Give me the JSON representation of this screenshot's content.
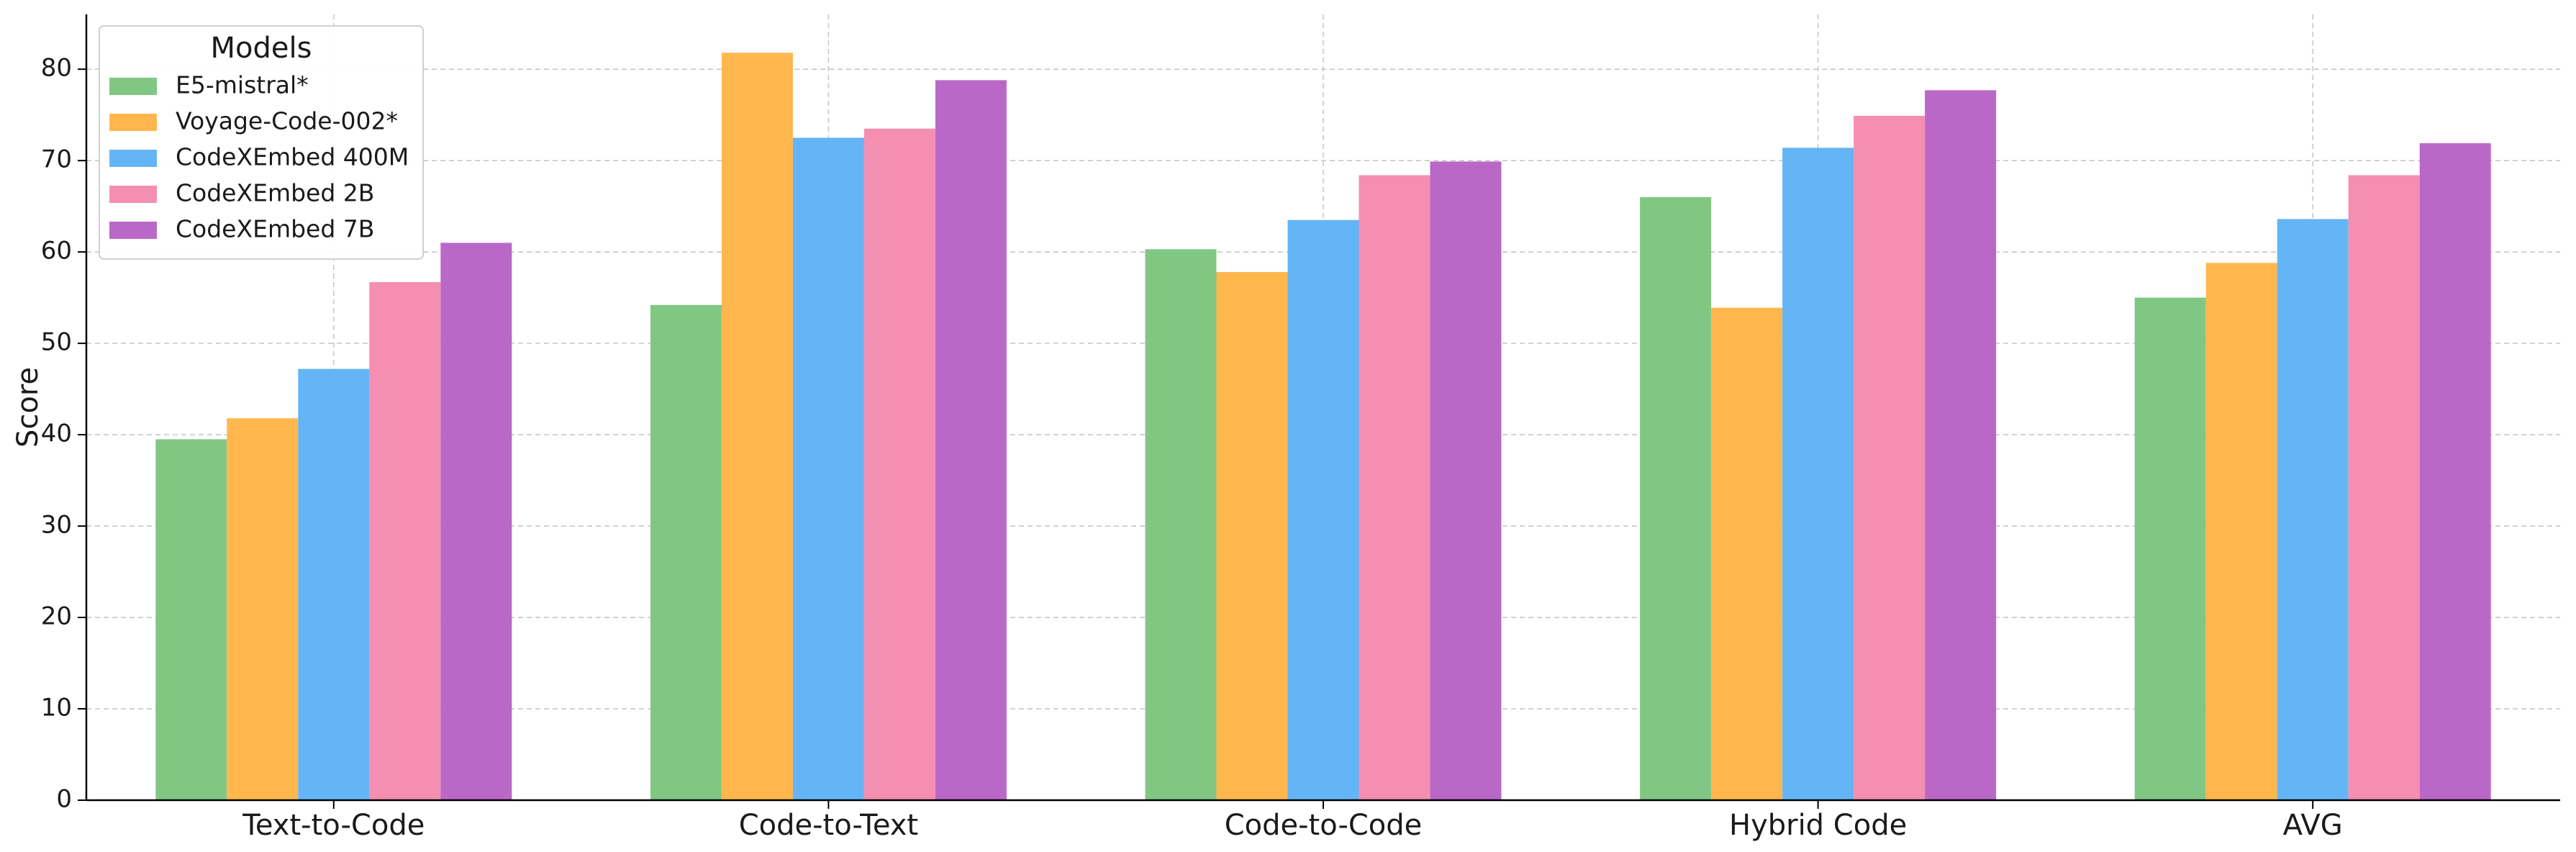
{
  "chart_data": {
    "type": "bar",
    "title": "",
    "xlabel": "",
    "ylabel": "Score",
    "ylim": [
      0,
      86
    ],
    "yticks": [
      0,
      10,
      20,
      30,
      40,
      50,
      60,
      70,
      80
    ],
    "grid": true,
    "legend": {
      "title": "Models",
      "placement": "top-left"
    },
    "categories": [
      "Text-to-Code",
      "Code-to-Text",
      "Code-to-Code",
      "Hybrid Code",
      "AVG"
    ],
    "series": [
      {
        "name": "E5-mistral*",
        "color": "#81c784",
        "values": [
          39.5,
          54.2,
          60.3,
          66.0,
          55.0
        ]
      },
      {
        "name": "Voyage-Code-002*",
        "color": "#ffb74d",
        "values": [
          41.8,
          81.8,
          57.8,
          53.9,
          58.8
        ]
      },
      {
        "name": "CodeXEmbed 400M",
        "color": "#64b5f6",
        "values": [
          47.2,
          72.5,
          63.5,
          71.4,
          63.6
        ]
      },
      {
        "name": "CodeXEmbed 2B",
        "color": "#f48fb1",
        "values": [
          56.7,
          73.5,
          68.4,
          74.9,
          68.4
        ]
      },
      {
        "name": "CodeXEmbed 7B",
        "color": "#ba68c8",
        "values": [
          61.0,
          78.8,
          69.9,
          77.7,
          71.9
        ]
      }
    ]
  }
}
